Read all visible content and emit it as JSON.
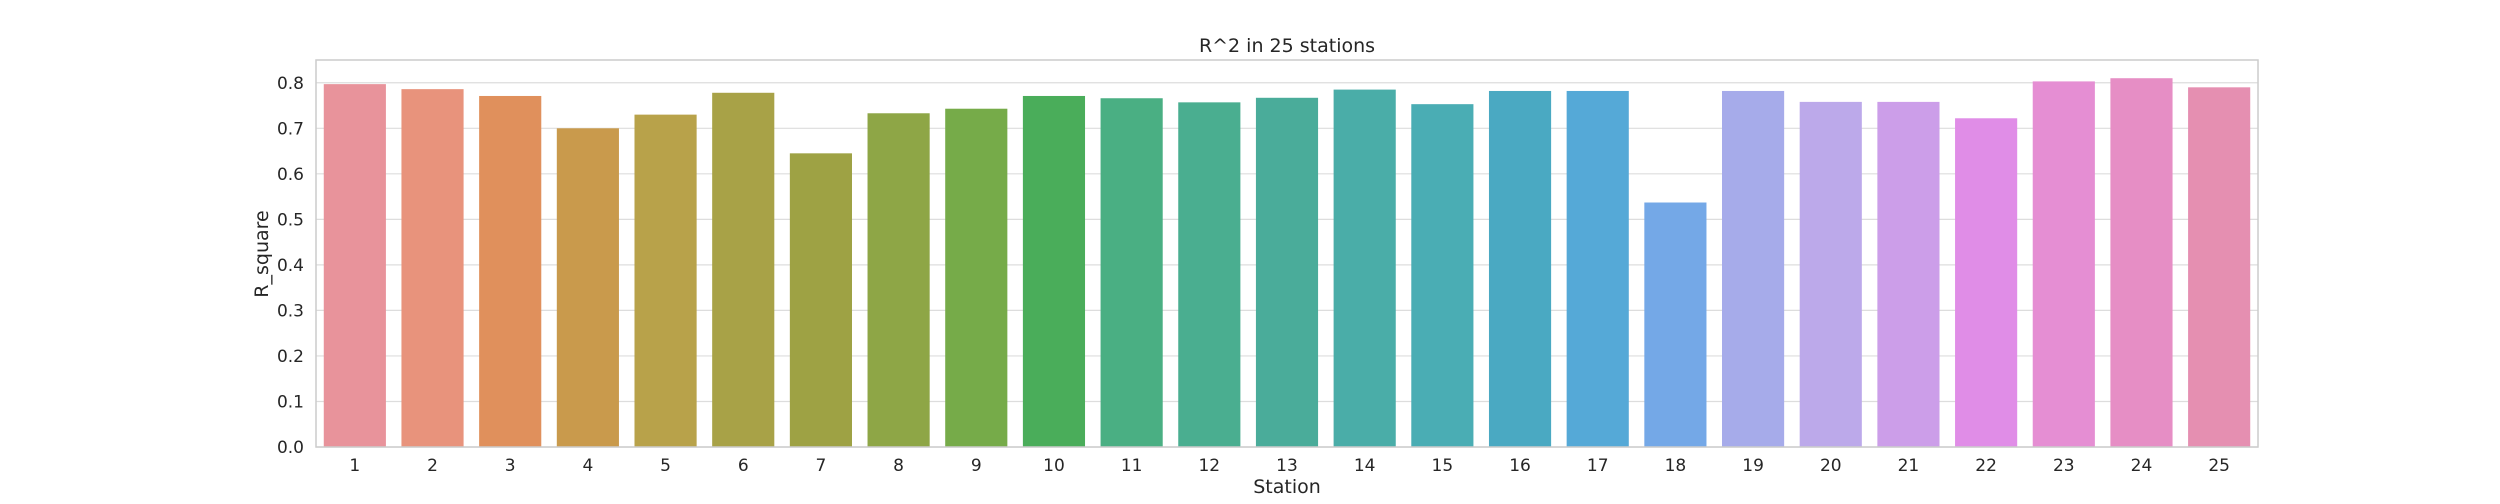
{
  "chart_data": {
    "type": "bar",
    "title": "R^2 in 25 stations",
    "xlabel": "Station",
    "ylabel": "R_square",
    "categories": [
      "1",
      "2",
      "3",
      "4",
      "5",
      "6",
      "7",
      "8",
      "9",
      "10",
      "11",
      "12",
      "13",
      "14",
      "15",
      "16",
      "17",
      "18",
      "19",
      "20",
      "21",
      "22",
      "23",
      "24",
      "25"
    ],
    "values": [
      0.797,
      0.786,
      0.771,
      0.7,
      0.73,
      0.778,
      0.645,
      0.733,
      0.743,
      0.771,
      0.766,
      0.757,
      0.767,
      0.785,
      0.753,
      0.782,
      0.782,
      0.537,
      0.782,
      0.758,
      0.758,
      0.722,
      0.803,
      0.81,
      0.79
    ],
    "colors": [
      "#e8939b",
      "#e8937c",
      "#e0905c",
      "#c99a4c",
      "#b8a24a",
      "#a8a247",
      "#9ea244",
      "#8ea646",
      "#76ab49",
      "#4aad5a",
      "#4aaf83",
      "#4aae90",
      "#4aac9a",
      "#4aada8",
      "#4aadb4",
      "#4aa9c2",
      "#55a9d7",
      "#74a8e7",
      "#a6abea",
      "#bca9ea",
      "#cc9ee9",
      "#e08de7",
      "#e58ed3",
      "#e68ec5",
      "#e58fb1"
    ],
    "yticks": [
      "0.0",
      "0.1",
      "0.2",
      "0.3",
      "0.4",
      "0.5",
      "0.6",
      "0.7",
      "0.8"
    ],
    "ylim": [
      0,
      0.85
    ],
    "grid": true,
    "legend": false
  }
}
